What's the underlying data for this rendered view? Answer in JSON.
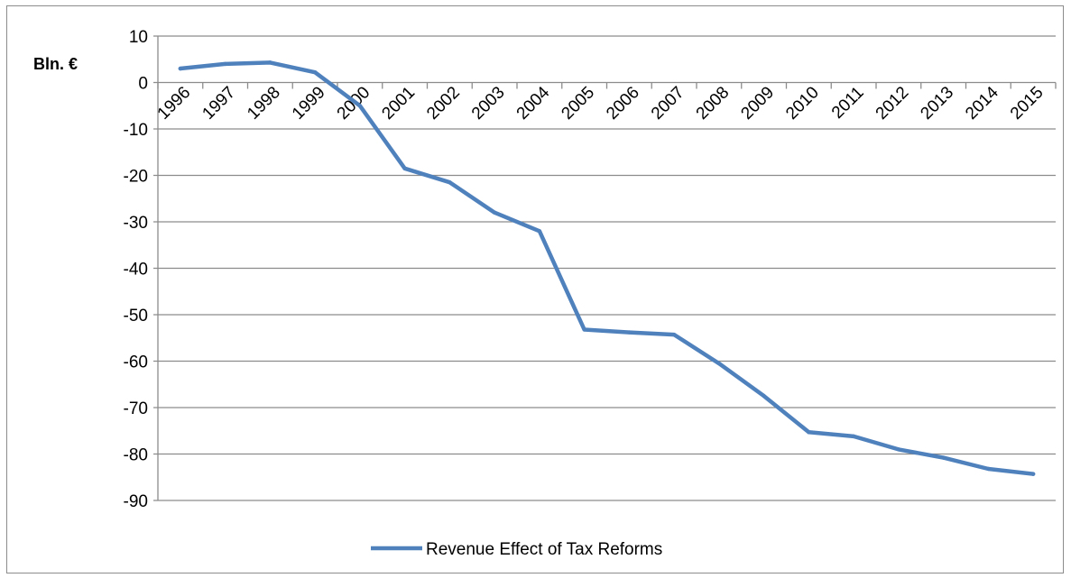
{
  "chart_data": {
    "type": "line",
    "ylabel": "Bln. €",
    "ylim": [
      -90,
      10
    ],
    "y_ticks": [
      "10",
      "0",
      "-10",
      "-20",
      "-30",
      "-40",
      "-50",
      "-60",
      "-70",
      "-80",
      "-90"
    ],
    "categories": [
      "1996",
      "1997",
      "1998",
      "1999",
      "2000",
      "2001",
      "2002",
      "2003",
      "2004",
      "2005",
      "2006",
      "2007",
      "2008",
      "2009",
      "2010",
      "2011",
      "2012",
      "2013",
      "2014",
      "2015"
    ],
    "series": [
      {
        "name": "Revenue Effect of Tax Reforms",
        "color": "#4f81bd",
        "values": [
          3,
          4,
          4.3,
          2.2,
          -5,
          -18.5,
          -21.5,
          -28,
          -32,
          -53.2,
          -53.8,
          -54.3,
          -60.5,
          -67.5,
          -75.3,
          -76.2,
          -79,
          -80.8,
          -83.2,
          -84.3
        ]
      }
    ],
    "legend_position": "bottom",
    "grid": true
  }
}
